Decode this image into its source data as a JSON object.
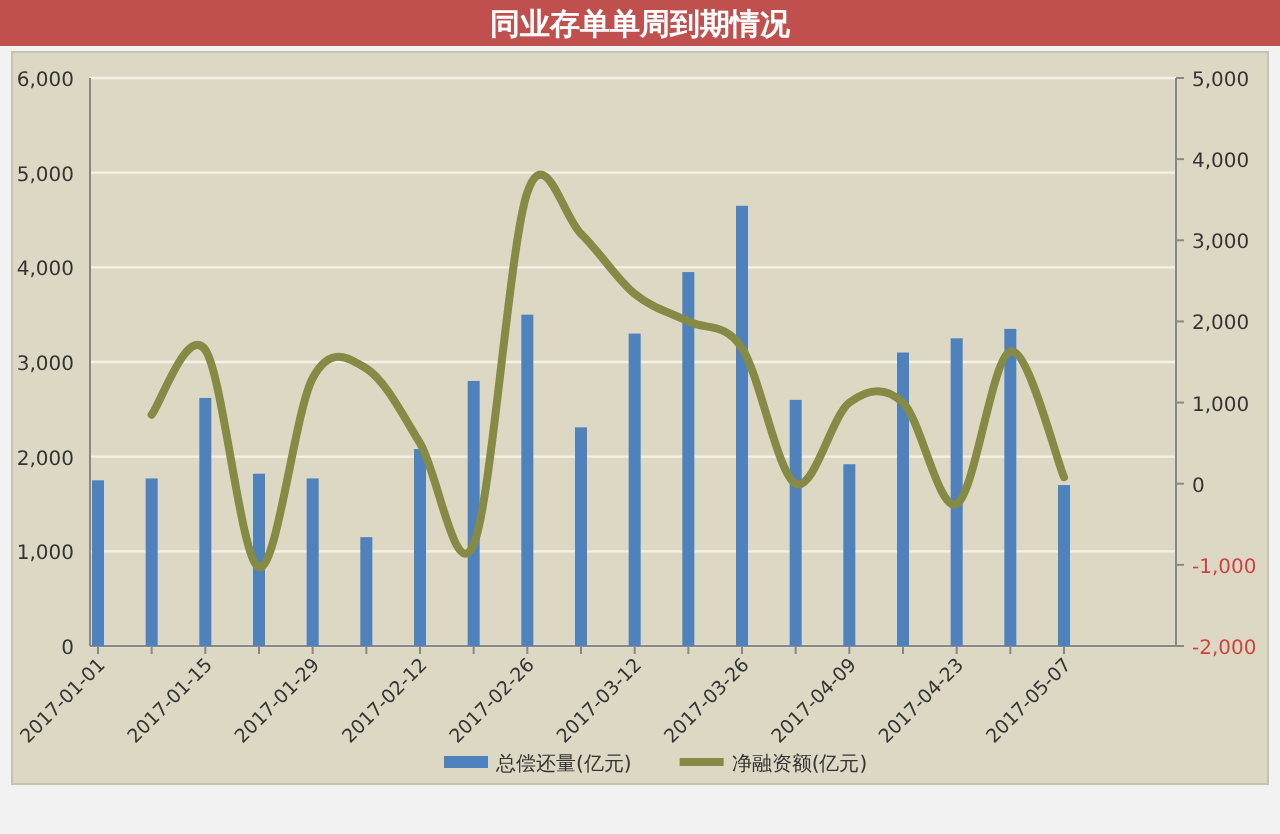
{
  "chart_data": {
    "type": "bar",
    "title": "同业存单单周到期情况",
    "categories": [
      "2017-01-01",
      null,
      "2017-01-15",
      null,
      "2017-01-29",
      null,
      "2017-02-12",
      null,
      "2017-02-26",
      null,
      "2017-03-12",
      null,
      "2017-03-26",
      null,
      "2017-04-09",
      null,
      "2017-04-23",
      null,
      "2017-05-07"
    ],
    "series": [
      {
        "name": "总偿还量(亿元)",
        "color": "#4f81bd",
        "values": [
          1750,
          1770,
          2620,
          1820,
          1770,
          1150,
          2080,
          2800,
          3500,
          2310,
          3300,
          3950,
          4650,
          2600,
          1920,
          3100,
          3250,
          3350,
          1700
        ]
      },
      {
        "name": "净融资额(亿元)",
        "type": "line",
        "axis": "y2",
        "color": "#858a45",
        "values": [
          null,
          850,
          1650,
          -1030,
          1300,
          1420,
          500,
          -750,
          3590,
          3080,
          2340,
          2000,
          1670,
          0,
          1000,
          1000,
          -250,
          1630,
          80
        ]
      }
    ],
    "ylim": [
      0,
      6000
    ],
    "yticks": [
      0,
      {
        "value": 1000,
        "label": "1,000"
      },
      {
        "value": 2000,
        "label": "2,000"
      },
      {
        "value": 3000,
        "label": "3,000"
      },
      {
        "value": 4000,
        "label": "4,000"
      },
      {
        "value": 5000,
        "label": "5,000"
      },
      {
        "value": 6000,
        "label": "6,000"
      }
    ],
    "y2lim": [
      -2000,
      5000
    ],
    "y2ticks": [
      {
        "value": -2000,
        "label": "-2,000"
      },
      {
        "value": -1000,
        "label": "-1,000"
      },
      0,
      {
        "value": 1000,
        "label": "1,000"
      },
      {
        "value": 2000,
        "label": "2,000"
      },
      {
        "value": 3000,
        "label": "3,000"
      },
      {
        "value": 4000,
        "label": "4,000"
      },
      {
        "value": 5000,
        "label": "5,000"
      }
    ],
    "grid": "y",
    "legend": "bottom",
    "marker": "none",
    "line_style": "solid"
  }
}
